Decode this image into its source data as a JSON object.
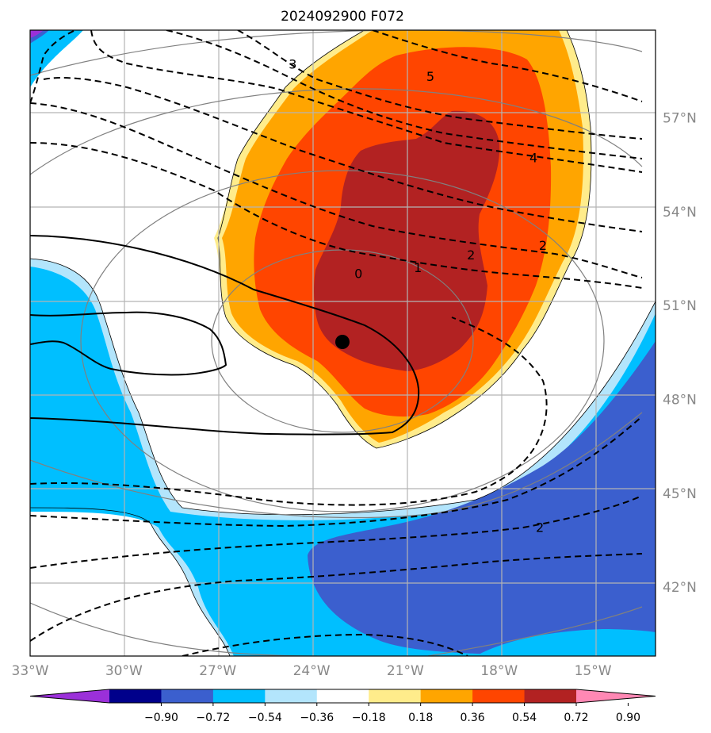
{
  "chart_data": {
    "type": "heatmap",
    "title": "2024092900 F072",
    "x_axis": {
      "range_deg": [
        -33,
        -13
      ],
      "ticks": [
        -33,
        -30,
        -27,
        -24,
        -21,
        -18,
        -15
      ],
      "tick_labels": [
        "33°W",
        "30°W",
        "27°W",
        "24°W",
        "21°W",
        "18°W",
        "15°W"
      ]
    },
    "y_axis": {
      "range_deg": [
        39.8,
        59.8
      ],
      "ticks": [
        42,
        45,
        48,
        51,
        54,
        57
      ],
      "tick_labels": [
        "42°N",
        "45°N",
        "48°N",
        "51°N",
        "54°N",
        "57°N"
      ],
      "tick_side": "right"
    },
    "grid": true,
    "colorbar": {
      "orientation": "horizontal",
      "position": "bottom",
      "levels": [
        -0.9,
        -0.72,
        -0.54,
        -0.36,
        -0.18,
        0.18,
        0.36,
        0.54,
        0.72,
        0.9
      ],
      "level_labels": [
        "−0.90",
        "−0.72",
        "−0.54",
        "−0.36",
        "−0.18",
        "0.18",
        "0.36",
        "0.54",
        "0.72",
        "0.90"
      ],
      "colors": [
        "#9b30d9",
        "#00008b",
        "#3b5fce",
        "#00bfff",
        "#b3e5fc",
        "#ffffff",
        "#ffec8b",
        "#ffa500",
        "#ff4500",
        "#b22222",
        "#ff88b4"
      ],
      "extend": "both"
    },
    "contour_labels": [
      {
        "text": "5",
        "lon": -20.2,
        "lat": 58.3
      },
      {
        "text": "3",
        "lon": -24.6,
        "lat": 58.7
      },
      {
        "text": "4",
        "lon": -16.9,
        "lat": 55.7
      },
      {
        "text": "2",
        "lon": -16.6,
        "lat": 52.9
      },
      {
        "text": "2",
        "lon": -18.9,
        "lat": 52.6
      },
      {
        "text": "1",
        "lon": -20.6,
        "lat": 52.2
      },
      {
        "text": "0",
        "lon": -22.5,
        "lat": 52.0
      },
      {
        "text": "2",
        "lon": -16.7,
        "lat": 43.9
      }
    ],
    "marker": {
      "lon": -23.1,
      "lat": 49.7
    }
  }
}
